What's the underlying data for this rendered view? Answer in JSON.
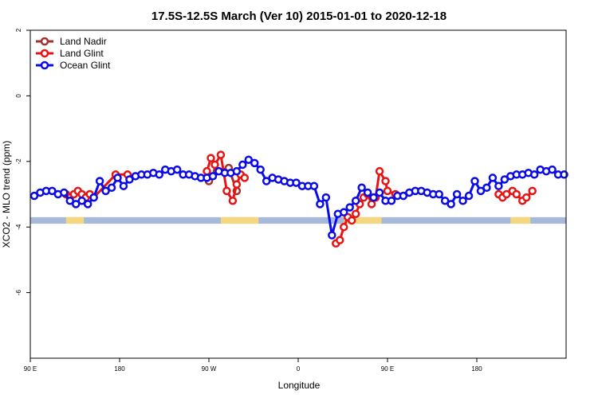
{
  "chart_data": {
    "type": "line",
    "title": "17.5S-12.5S March (Ver 10)   2015-01-01 to 2020-12-18",
    "xlabel": "Longitude",
    "ylabel": "XCO2 - MLO trend (ppm)",
    "xlim": [
      -90,
      180
    ],
    "ylim": [
      -8,
      2
    ],
    "x_ticks": [
      {
        "value": -90,
        "label": "90 E"
      },
      {
        "value": -45,
        "label": "180"
      },
      {
        "value": 0,
        "label": "90 W"
      },
      {
        "value": 45,
        "label": "0"
      },
      {
        "value": 90,
        "label": "90 E"
      },
      {
        "value": 135,
        "label": "180"
      }
    ],
    "y_ticks": [
      {
        "value": 2,
        "label": "2"
      },
      {
        "value": 0,
        "label": "0"
      },
      {
        "value": -2,
        "label": "-2"
      },
      {
        "value": -4,
        "label": "-4"
      },
      {
        "value": -6,
        "label": "-6"
      }
    ],
    "legend_position": "top-left",
    "grid": false,
    "surface_band": {
      "y_range": [
        -3.9,
        -3.7
      ],
      "ocean_color": "#a7b9db",
      "land_color": "#f5d77d",
      "land_segments": [
        [
          -72,
          -63
        ],
        [
          6,
          25
        ],
        [
          68,
          87
        ],
        [
          152,
          162
        ]
      ]
    },
    "series": [
      {
        "name": "Land Nadir",
        "color": "#a0322d",
        "x": [
          0,
          4,
          10,
          14
        ],
        "y": [
          -2.6,
          -2.3,
          -2.2,
          -2.9
        ]
      },
      {
        "name": "Land Glint",
        "color": "#e81414",
        "x": [
          -72,
          -70,
          -68,
          -66,
          -64,
          -62,
          -60,
          -58,
          -47,
          -41,
          -1,
          1,
          3,
          6,
          9,
          12,
          14,
          16,
          18,
          64,
          66,
          68,
          70,
          72,
          74,
          76,
          78,
          80,
          82,
          84,
          86,
          89,
          90,
          94,
          146,
          148,
          150,
          153,
          155,
          158,
          160,
          163
        ],
        "y": [
          -3.0,
          -3.1,
          -3.0,
          -2.9,
          -3.0,
          -3.1,
          -3.0,
          -3.1,
          -2.4,
          -2.4,
          -2.3,
          -1.9,
          -2.1,
          -1.8,
          -2.9,
          -3.2,
          -2.7,
          -2.4,
          -2.5,
          -4.5,
          -4.4,
          -4.0,
          -3.7,
          -3.8,
          -3.6,
          -3.3,
          -3.1,
          -3.0,
          -3.3,
          -3.1,
          -2.3,
          -2.6,
          -2.9,
          -3.0,
          -3.0,
          -3.1,
          -3.0,
          -2.9,
          -3.0,
          -3.2,
          -3.1,
          -2.9
        ]
      },
      {
        "name": "Ocean Glint",
        "color": "#0b0be8",
        "x": [
          -88,
          -85,
          -82,
          -79,
          -76,
          -73,
          -70,
          -67,
          -64,
          -61,
          -58,
          -55,
          -52,
          -49,
          -46,
          -43,
          -40,
          -37,
          -34,
          -31,
          -28,
          -25,
          -22,
          -19,
          -16,
          -13,
          -10,
          -7,
          -4,
          -1,
          2,
          5,
          8,
          11,
          14,
          17,
          20,
          23,
          26,
          29,
          32,
          35,
          38,
          41,
          44,
          47,
          50,
          53,
          56,
          59,
          62,
          65,
          68,
          71,
          74,
          77,
          80,
          83,
          86,
          89,
          92,
          95,
          98,
          101,
          104,
          107,
          110,
          113,
          116,
          119,
          122,
          125,
          128,
          131,
          134,
          137,
          140,
          143,
          146,
          149,
          152,
          155,
          158,
          161,
          164,
          167,
          170,
          173,
          176,
          179
        ],
        "y": [
          -3.05,
          -2.95,
          -2.9,
          -2.9,
          -3.0,
          -2.95,
          -3.2,
          -3.3,
          -3.2,
          -3.3,
          -3.1,
          -2.6,
          -2.9,
          -2.8,
          -2.5,
          -2.75,
          -2.55,
          -2.45,
          -2.4,
          -2.4,
          -2.35,
          -2.4,
          -2.25,
          -2.3,
          -2.25,
          -2.4,
          -2.4,
          -2.45,
          -2.5,
          -2.5,
          -2.45,
          -2.3,
          -2.35,
          -2.35,
          -2.3,
          -2.1,
          -1.95,
          -2.05,
          -2.25,
          -2.6,
          -2.5,
          -2.55,
          -2.6,
          -2.65,
          -2.65,
          -2.75,
          -2.75,
          -2.75,
          -3.3,
          -3.1,
          -4.25,
          -3.6,
          -3.55,
          -3.4,
          -3.2,
          -2.8,
          -2.95,
          -3.1,
          -2.95,
          -3.2,
          -3.2,
          -3.05,
          -3.05,
          -2.95,
          -2.9,
          -2.9,
          -2.95,
          -3.0,
          -3.0,
          -3.2,
          -3.3,
          -3.0,
          -3.2,
          -3.05,
          -2.6,
          -2.9,
          -2.8,
          -2.5,
          -2.75,
          -2.55,
          -2.45,
          -2.4,
          -2.4,
          -2.35,
          -2.4,
          -2.25,
          -2.3,
          -2.25,
          -2.4,
          -2.4
        ]
      }
    ]
  }
}
